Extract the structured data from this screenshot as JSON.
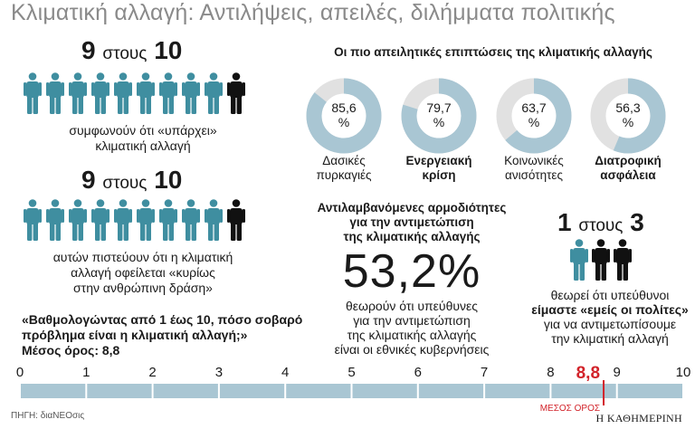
{
  "title": "Κλιματική αλλαγή: Αντιλήψεις, απειλές, διλήμματα πολιτικής",
  "stat1": {
    "ratio_num": "9",
    "ratio_word": "στους",
    "ratio_den": "10",
    "caption_lines": [
      "συμφωνούν ότι «υπάρχει»",
      "κλιματική αλλαγή"
    ]
  },
  "stat2": {
    "ratio_num": "9",
    "ratio_word": "στους",
    "ratio_den": "10",
    "caption_lines": [
      "αυτών πιστεύουν ότι η κλιματική",
      "αλλαγή οφείλεται «κυρίως",
      "στην ανθρώπινη δράση»"
    ]
  },
  "threats": {
    "heading": "Οι πιο απειλητικές επιπτώσεις της κλιματικής αλλαγής",
    "items": [
      {
        "value": 85.6,
        "label_value": "85,6",
        "pct": "%",
        "label_lines": [
          "Δασικές",
          "πυρκαγιές"
        ],
        "bold": false
      },
      {
        "value": 79.7,
        "label_value": "79,7",
        "pct": "%",
        "label_lines": [
          "Ενεργειακή",
          "κρίση"
        ],
        "bold": true
      },
      {
        "value": 63.7,
        "label_value": "63,7",
        "pct": "%",
        "label_lines": [
          "Κοινωνικές",
          "ανισότητες"
        ],
        "bold": false
      },
      {
        "value": 56.3,
        "label_value": "56,3",
        "pct": "%",
        "label_lines": [
          "Διατροφική",
          "ασφάλεια"
        ],
        "bold": true
      }
    ]
  },
  "responsibility": {
    "heading_lines": [
      "Αντιλαμβανόμενες αρμοδιότητες",
      "για την αντιμετώπιση",
      "της κλιματικής αλλαγής"
    ],
    "big_value": "53,2%",
    "caption_lines": [
      "θεωρούν ότι υπεύθυνες",
      "για την αντιμετώπιση",
      "της κλιματικής αλλαγής",
      "είναι οι εθνικές κυβερνήσεις"
    ]
  },
  "citizens": {
    "ratio_num": "1",
    "ratio_word": "στους",
    "ratio_den": "3",
    "caption_lines": [
      "θεωρεί ότι υπεύθυνοι",
      "είμαστε «εμείς οι πολίτες»",
      "για να αντιμετωπίσουμε",
      "την κλιματική αλλαγή"
    ]
  },
  "question": {
    "lines": [
      "«Βαθμολογώντας από 1 έως 10, πόσο σοβαρό",
      "πρόβλημα είναι η κλιματική αλλαγή;»"
    ],
    "mean_line": "Μέσος όρος: 8,8"
  },
  "scale": {
    "ticks": [
      "0",
      "1",
      "2",
      "3",
      "4",
      "5",
      "6",
      "7",
      "8",
      "9",
      "10"
    ],
    "min": 0,
    "max": 10,
    "mean": 8.8,
    "mean_label": "8,8",
    "mean_caption": "ΜΕΣΟΣ ΟΡΟΣ"
  },
  "source": "ΠΗΓΗ: διαΝΕΟσις",
  "brand": "Η ΚΑΘΗΜΕΡΙΝΗ",
  "colors": {
    "teal": "#3f8ea0",
    "black": "#111111",
    "donut_fill": "#a9c6d3",
    "donut_rest": "#e1e1e1",
    "bar": "#a9c6d3",
    "red": "#d2232a",
    "title_gray": "#8a8a8a"
  },
  "chart_data": [
    {
      "type": "pie",
      "title": "Οι πιο απειλητικές επιπτώσεις της κλιματικής αλλαγής",
      "categories": [
        "Δασικές πυρκαγιές",
        "Ενεργειακή κρίση",
        "Κοινωνικές ανισότητες",
        "Διατροφική ασφάλεια"
      ],
      "values": [
        85.6,
        79.7,
        63.7,
        56.3
      ],
      "unit": "%"
    },
    {
      "type": "bar",
      "title": "«Βαθμολογώντας από 1 έως 10, πόσο σοβαρό πρόβλημα είναι η κλιματική αλλαγή;»",
      "xlim": [
        0,
        10
      ],
      "values": [
        8.8
      ],
      "annotation": "ΜΕΣΟΣ ΟΡΟΣ"
    }
  ]
}
